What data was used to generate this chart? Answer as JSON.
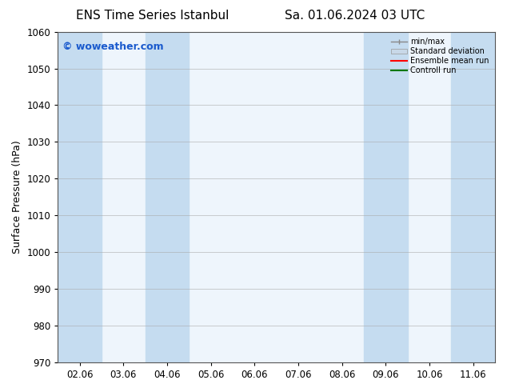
{
  "title1": "ENS Time Series Istanbul",
  "title2": "Sa. 01.06.2024 03 UTC",
  "ylabel": "Surface Pressure (hPa)",
  "ylim": [
    970,
    1060
  ],
  "yticks": [
    970,
    980,
    990,
    1000,
    1010,
    1020,
    1030,
    1040,
    1050,
    1060
  ],
  "xtick_labels": [
    "02.06",
    "03.06",
    "04.06",
    "05.06",
    "06.06",
    "07.06",
    "08.06",
    "09.06",
    "10.06",
    "11.06"
  ],
  "xtick_positions": [
    1,
    2,
    3,
    4,
    5,
    6,
    7,
    8,
    9,
    10
  ],
  "xlim": [
    0.5,
    10.5
  ],
  "shaded_columns_dark": [
    {
      "x_start": 0.5,
      "x_end": 1.5
    },
    {
      "x_start": 2.5,
      "x_end": 3.5
    },
    {
      "x_start": 7.5,
      "x_end": 8.5
    },
    {
      "x_start": 9.5,
      "x_end": 10.5
    }
  ],
  "shaded_columns_light": [
    {
      "x_start": 1.5,
      "x_end": 2.5
    },
    {
      "x_start": 3.5,
      "x_end": 4.5
    },
    {
      "x_start": 6.5,
      "x_end": 7.5
    },
    {
      "x_start": 8.5,
      "x_end": 9.5
    }
  ],
  "bg_color": "#ddeeff",
  "shade_dark_color": "#c5dcf0",
  "shade_light_color": "#ddeeff",
  "plot_bg_color": "#eef5fc",
  "watermark_text": "© woweather.com",
  "watermark_color": "#1a5acd",
  "background_color": "#ffffff",
  "legend_entries": [
    "min/max",
    "Standard deviation",
    "Ensemble mean run",
    "Controll run"
  ],
  "legend_colors_line": [
    "#999999",
    "#bbccdd",
    "#ff0000",
    "#007700"
  ],
  "title_fontsize": 11,
  "axis_fontsize": 9,
  "tick_fontsize": 8.5
}
